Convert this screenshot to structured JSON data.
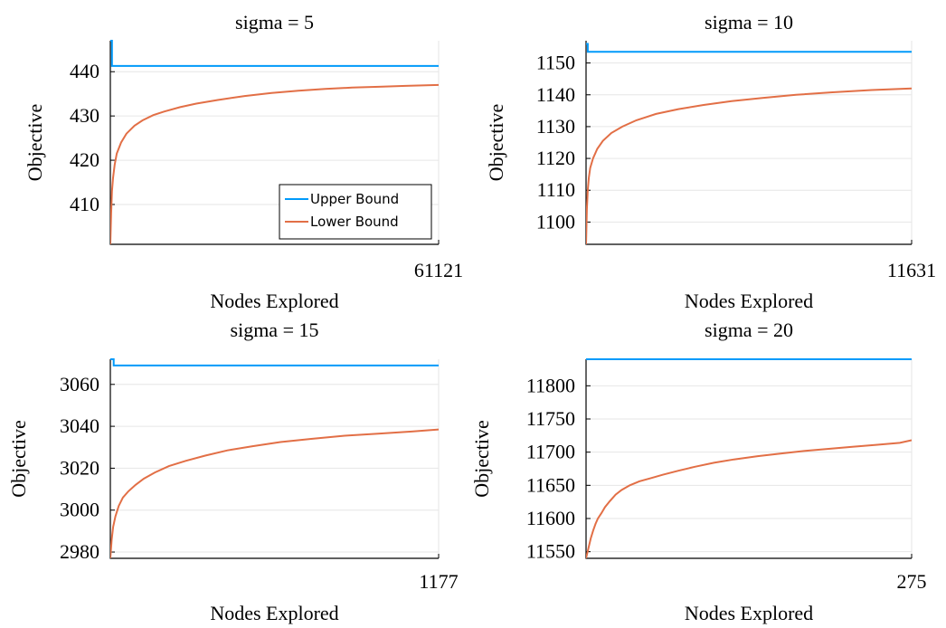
{
  "colors": {
    "upper": "#009AFA",
    "lower": "#E26F46"
  },
  "chart_data": [
    {
      "type": "line",
      "title": "sigma = 5",
      "xlabel": "Nodes Explored",
      "ylabel": "Objective",
      "xlim": [
        0,
        61121
      ],
      "ylim": [
        401,
        447
      ],
      "xticks": [
        61121
      ],
      "yticks": [
        410,
        420,
        430,
        440
      ],
      "legend": "bottom-right",
      "series": [
        {
          "name": "Upper Bound",
          "color_key": "upper",
          "x": [
            0,
            0,
            300,
            300,
            61121
          ],
          "y": [
            447,
            447,
            447,
            441.3,
            441.3
          ]
        },
        {
          "name": "Lower Bound",
          "color_key": "lower",
          "x": [
            0,
            150,
            300,
            500,
            800,
            1200,
            2000,
            3000,
            4500,
            6000,
            8000,
            10000,
            13000,
            16000,
            20000,
            25000,
            30000,
            35000,
            40000,
            45000,
            50000,
            55000,
            61121
          ],
          "y": [
            401,
            408,
            413,
            416,
            419,
            421.5,
            424,
            426,
            427.8,
            429,
            430.2,
            431,
            432,
            432.8,
            433.6,
            434.5,
            435.2,
            435.7,
            436.1,
            436.4,
            436.6,
            436.8,
            437
          ]
        }
      ]
    },
    {
      "type": "line",
      "title": "sigma = 10",
      "xlabel": "Nodes Explored",
      "ylabel": "Objective",
      "xlim": [
        0,
        11631
      ],
      "ylim": [
        1093,
        1157
      ],
      "xticks": [
        11631
      ],
      "yticks": [
        1100,
        1110,
        1120,
        1130,
        1140,
        1150
      ],
      "legend": "none",
      "series": [
        {
          "name": "Upper Bound",
          "color_key": "upper",
          "x": [
            0,
            0,
            60,
            60,
            11631
          ],
          "y": [
            1156,
            1156,
            1156,
            1153.5,
            1153.5
          ]
        },
        {
          "name": "Lower Bound",
          "color_key": "lower",
          "x": [
            0,
            30,
            60,
            100,
            150,
            250,
            400,
            600,
            900,
            1300,
            1800,
            2500,
            3300,
            4200,
            5200,
            6300,
            7500,
            8800,
            10200,
            11631
          ],
          "y": [
            1093,
            1104,
            1110,
            1114,
            1117,
            1120,
            1123,
            1125.5,
            1128,
            1130,
            1132,
            1134,
            1135.5,
            1136.8,
            1138,
            1139,
            1140,
            1140.8,
            1141.5,
            1142
          ]
        }
      ]
    },
    {
      "type": "line",
      "title": "sigma = 15",
      "xlabel": "Nodes Explored",
      "ylabel": "Objective",
      "xlim": [
        0,
        1177
      ],
      "ylim": [
        2977,
        3072
      ],
      "xticks": [
        1177
      ],
      "yticks": [
        2980,
        3000,
        3020,
        3040,
        3060
      ],
      "legend": "none",
      "series": [
        {
          "name": "Upper Bound",
          "color_key": "upper",
          "x": [
            0,
            0,
            12,
            12,
            1177
          ],
          "y": [
            3072,
            3072,
            3072,
            3069,
            3069
          ]
        },
        {
          "name": "Lower Bound",
          "color_key": "lower",
          "x": [
            0,
            5,
            10,
            18,
            30,
            45,
            65,
            90,
            120,
            160,
            210,
            270,
            340,
            420,
            510,
            610,
            720,
            840,
            960,
            1080,
            1177
          ],
          "y": [
            2977,
            2986,
            2992,
            2997,
            3002,
            3006,
            3009,
            3012,
            3015,
            3018,
            3021,
            3023.5,
            3026,
            3028.5,
            3030.5,
            3032.5,
            3034,
            3035.5,
            3036.5,
            3037.5,
            3038.5
          ]
        }
      ]
    },
    {
      "type": "line",
      "title": "sigma = 20",
      "xlabel": "Nodes Explored",
      "ylabel": "Objective",
      "xlim": [
        0,
        275
      ],
      "ylim": [
        11540,
        11840
      ],
      "xticks": [
        275
      ],
      "yticks": [
        11550,
        11600,
        11650,
        11700,
        11750,
        11800
      ],
      "legend": "none",
      "series": [
        {
          "name": "Upper Bound",
          "color_key": "upper",
          "x": [
            0,
            275
          ],
          "y": [
            11840,
            11840
          ]
        },
        {
          "name": "Lower Bound",
          "color_key": "lower",
          "x": [
            0,
            2,
            4,
            6,
            8,
            10,
            13,
            16,
            20,
            25,
            30,
            37,
            45,
            55,
            65,
            78,
            92,
            108,
            125,
            145,
            165,
            185,
            205,
            225,
            245,
            265,
            275
          ],
          "y": [
            11540,
            11555,
            11570,
            11582,
            11592,
            11600,
            11608,
            11617,
            11626,
            11636,
            11643,
            11650,
            11656,
            11661,
            11666,
            11672,
            11678,
            11684,
            11689,
            11694,
            11698,
            11702,
            11705,
            11708,
            11711,
            11714,
            11718
          ]
        }
      ]
    }
  ]
}
